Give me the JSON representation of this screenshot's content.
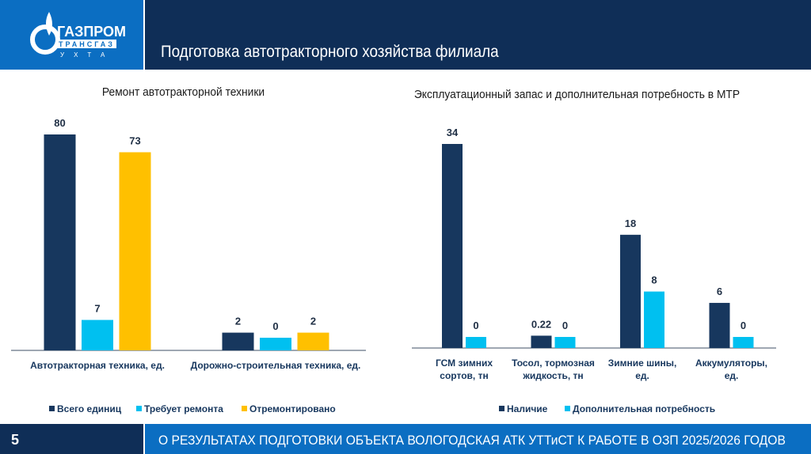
{
  "header": {
    "logo_text": [
      "ГАЗПРОМ",
      "ТРАНСГАЗ",
      "УХТА"
    ],
    "title": "Подготовка автотракторного хозяйства филиала"
  },
  "footer": {
    "page_number": "5",
    "text": "О РЕЗУЛЬТАТАХ ПОДГОТОВКИ ОБЪЕКТА ВОЛОГОДСКАЯ АТК УТТиСТ К РАБОТЕ В ОЗП 2025/2026 ГОДОВ"
  },
  "colors": {
    "navy": "#17375e",
    "cyan": "#00c0f0",
    "yellow": "#ffc000"
  },
  "chart_data": [
    {
      "type": "bar",
      "title": "Ремонт автотракторной техники",
      "categories": [
        [
          "Автотракторная техника, ед."
        ],
        [
          "Дорожно-строительная техника, ед."
        ]
      ],
      "series": [
        {
          "name": "Всего единиц",
          "color": "#17375e",
          "values": [
            80,
            2
          ]
        },
        {
          "name": "Требует ремонта",
          "color": "#00c0f0",
          "values": [
            7,
            0
          ]
        },
        {
          "name": "Отремонтировано",
          "color": "#ffc000",
          "values": [
            73,
            2
          ]
        }
      ],
      "ylim": [
        0,
        80
      ],
      "legend": "bottom"
    },
    {
      "type": "bar",
      "title": "Эксплуатационный запас и дополнительная потребность в МТР",
      "categories": [
        [
          "ГСМ зимних",
          "сортов, тн"
        ],
        [
          "Тосол, тормозная",
          "жидкость, тн"
        ],
        [
          "Зимние шины,",
          "ед."
        ],
        [
          "Аккумуляторы,",
          "ед."
        ]
      ],
      "series": [
        {
          "name": "Наличие",
          "color": "#17375e",
          "values": [
            34,
            0.22,
            18,
            6
          ]
        },
        {
          "name": "Дополнительная потребность",
          "color": "#00c0f0",
          "values": [
            0,
            0,
            8,
            0
          ]
        }
      ],
      "ylim": [
        0,
        34
      ],
      "legend": "bottom"
    }
  ]
}
